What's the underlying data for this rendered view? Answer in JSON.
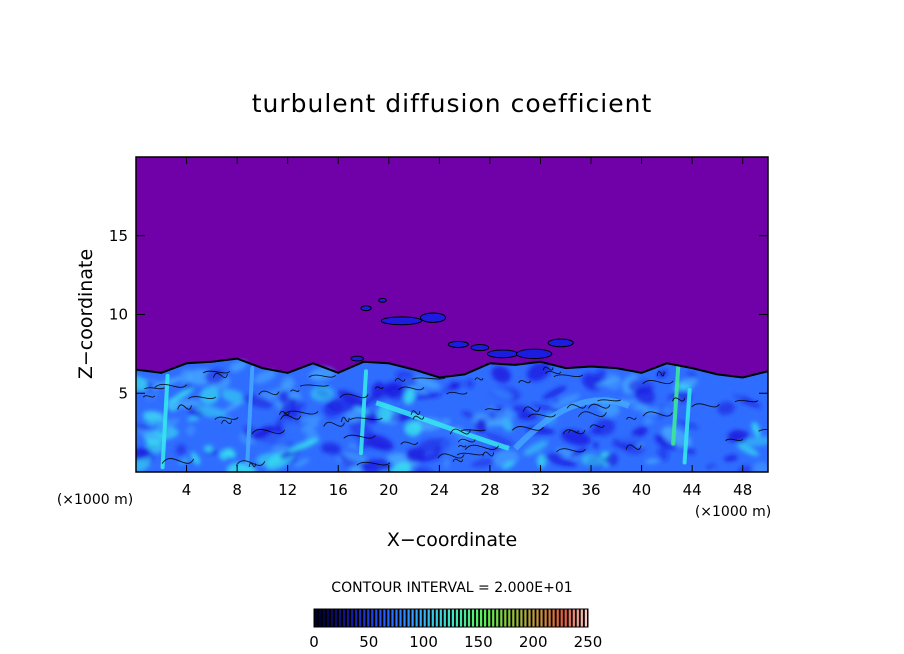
{
  "chart_data": {
    "type": "heatmap",
    "title": "turbulent diffusion coefficient",
    "xlabel": "X−coordinate",
    "ylabel": "Z−coordinate",
    "x_unit": "(×1000 m)",
    "y_unit": "(×1000 m)",
    "xlim": [
      0,
      50
    ],
    "ylim": [
      0,
      20
    ],
    "x_ticks": [
      4,
      8,
      12,
      16,
      20,
      24,
      28,
      32,
      36,
      40,
      44,
      48
    ],
    "x_tick_labels": [
      "4",
      "8",
      "12",
      "16",
      "20",
      "24",
      "28",
      "32",
      "36",
      "40",
      "44",
      "48"
    ],
    "y_ticks": [
      5,
      10,
      15
    ],
    "y_tick_labels": [
      "5",
      "10",
      "15"
    ],
    "contour_interval_text": "CONTOUR INTERVAL = 2.000E+01",
    "colorbar": {
      "min": 0,
      "max": 250,
      "ticks": [
        0,
        50,
        100,
        150,
        200,
        250
      ],
      "tick_labels": [
        "0",
        "50",
        "100",
        "150",
        "200",
        "250"
      ]
    },
    "boundary_layer_top": [
      [
        0,
        6.5
      ],
      [
        2,
        6.3
      ],
      [
        4,
        6.9
      ],
      [
        6,
        7.0
      ],
      [
        8,
        7.2
      ],
      [
        10,
        6.6
      ],
      [
        12,
        6.3
      ],
      [
        14,
        6.9
      ],
      [
        16,
        6.3
      ],
      [
        18,
        7.0
      ],
      [
        20,
        6.9
      ],
      [
        22,
        6.5
      ],
      [
        24,
        6.0
      ],
      [
        26,
        6.2
      ],
      [
        28,
        6.9
      ],
      [
        30,
        6.8
      ],
      [
        32,
        7.0
      ],
      [
        34,
        6.6
      ],
      [
        36,
        6.7
      ],
      [
        38,
        6.6
      ],
      [
        40,
        6.3
      ],
      [
        42,
        6.9
      ],
      [
        44,
        6.6
      ],
      [
        46,
        6.2
      ],
      [
        48,
        6.0
      ],
      [
        50,
        6.4
      ]
    ],
    "background_value": 0,
    "typical_value_in_boundary_layer": 60,
    "colors": {
      "background_field": "#7000a8",
      "dark_blue": "#1c1ce0",
      "mid_blue": "#2f6dff",
      "light_blue": "#45a7ff",
      "cyan": "#36e6ee",
      "green": "#3fe79b",
      "contour_line": "#000000"
    }
  }
}
